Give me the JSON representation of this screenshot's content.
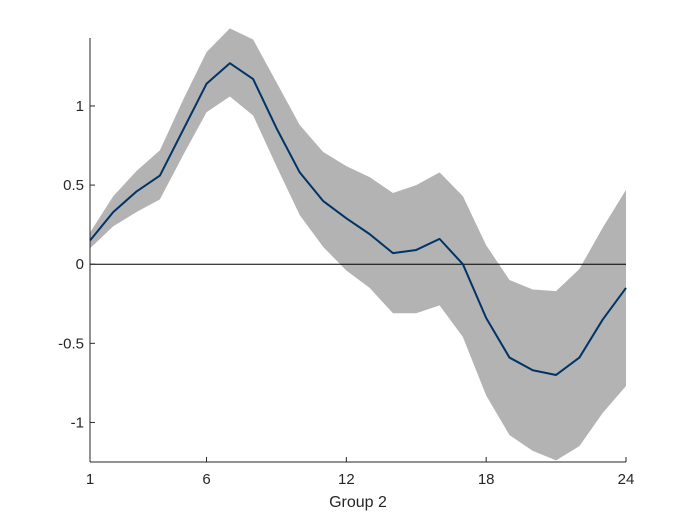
{
  "chart_data": {
    "type": "line",
    "title": "",
    "xlabel": "Group 2",
    "ylabel": "",
    "xlim": [
      1,
      24
    ],
    "ylim": [
      -1.25,
      1.48
    ],
    "xticks": [
      1,
      6,
      12,
      18,
      24
    ],
    "yticks": [
      -1,
      -0.5,
      0,
      0.5,
      1
    ],
    "ytick_labels": [
      "-1",
      "-0.5",
      "0",
      "0.5",
      "1"
    ],
    "grid": false,
    "zero_line": true,
    "x": [
      1,
      2,
      3,
      4,
      5,
      6,
      7,
      8,
      9,
      10,
      11,
      12,
      13,
      14,
      15,
      16,
      17,
      18,
      19,
      20,
      21,
      22,
      23,
      24
    ],
    "series": [
      {
        "role": "median",
        "values": [
          0.15,
          0.33,
          0.46,
          0.56,
          0.85,
          1.14,
          1.27,
          1.17,
          0.86,
          0.58,
          0.4,
          0.29,
          0.19,
          0.07,
          0.09,
          0.16,
          0.0,
          -0.34,
          -0.59,
          -0.67,
          -0.7,
          -0.59,
          -0.35,
          -0.15
        ],
        "color": "#003366"
      },
      {
        "role": "band-upper",
        "values": [
          0.2,
          0.43,
          0.59,
          0.72,
          1.04,
          1.34,
          1.49,
          1.42,
          1.15,
          0.88,
          0.71,
          0.62,
          0.55,
          0.45,
          0.5,
          0.58,
          0.43,
          0.12,
          -0.1,
          -0.16,
          -0.17,
          -0.03,
          0.23,
          0.47
        ],
        "color": "#b3b3b3"
      },
      {
        "role": "band-lower",
        "values": [
          0.1,
          0.24,
          0.33,
          0.41,
          0.69,
          0.96,
          1.06,
          0.94,
          0.62,
          0.31,
          0.11,
          -0.04,
          -0.15,
          -0.31,
          -0.31,
          -0.26,
          -0.46,
          -0.83,
          -1.08,
          -1.18,
          -1.24,
          -1.15,
          -0.94,
          -0.77
        ],
        "color": "#b3b3b3"
      }
    ]
  }
}
